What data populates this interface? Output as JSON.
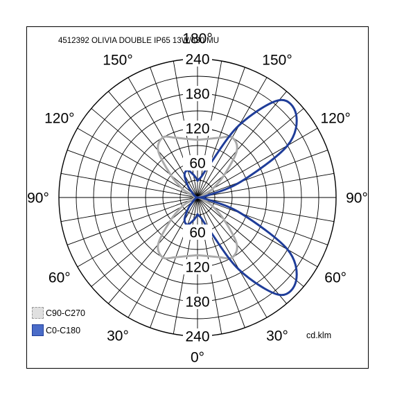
{
  "chart_data": {
    "type": "polar",
    "title": "4512392 OLIVIA DOUBLE IP65 13W/830 MU",
    "unit": "cd.klm",
    "radial_max": 240,
    "radial_ticks": [
      60,
      120,
      180,
      240
    ],
    "angle_labels": [
      {
        "text": "0°",
        "angle": 0
      },
      {
        "text": "30°",
        "angle": 30
      },
      {
        "text": "30°",
        "angle": -30
      },
      {
        "text": "60°",
        "angle": 60
      },
      {
        "text": "60°",
        "angle": -60
      },
      {
        "text": "90°",
        "angle": 90
      },
      {
        "text": "90°",
        "angle": -90
      },
      {
        "text": "120°",
        "angle": 120
      },
      {
        "text": "120°",
        "angle": -120
      },
      {
        "text": "150°",
        "angle": 150
      },
      {
        "text": "150°",
        "angle": -150
      },
      {
        "text": "180°",
        "angle": 180
      }
    ],
    "series": [
      {
        "name": "C90-C270",
        "color": "#aaaaaa",
        "style": "swatch-dashed",
        "angles": [
          0,
          10,
          20,
          30,
          40,
          50,
          60,
          70,
          80,
          90,
          100,
          110,
          120,
          130,
          140,
          150,
          160,
          170,
          180
        ],
        "values_right": [
          100,
          103,
          110,
          120,
          106,
          60,
          30,
          10,
          2,
          0,
          2,
          10,
          30,
          60,
          106,
          120,
          110,
          103,
          100
        ],
        "values_left": [
          100,
          103,
          110,
          120,
          106,
          60,
          30,
          10,
          2,
          0,
          2,
          10,
          30,
          60,
          106,
          120,
          110,
          103,
          100
        ]
      },
      {
        "name": "C0-C180",
        "color": "#1f3d99",
        "style": "swatch-solid",
        "angles": [
          0,
          10,
          20,
          30,
          40,
          50,
          60,
          70,
          80,
          90,
          100,
          110,
          120,
          130,
          140,
          150,
          160,
          170,
          180
        ],
        "values_right": [
          30,
          36,
          60,
          145,
          220,
          223,
          180,
          80,
          15,
          0,
          15,
          80,
          180,
          223,
          220,
          145,
          60,
          36,
          30
        ],
        "values_left": [
          30,
          40,
          50,
          45,
          25,
          10,
          5,
          2,
          0,
          0,
          0,
          2,
          5,
          10,
          25,
          45,
          50,
          40,
          30
        ]
      }
    ],
    "grid": true,
    "legend_position": "bottom-left"
  }
}
